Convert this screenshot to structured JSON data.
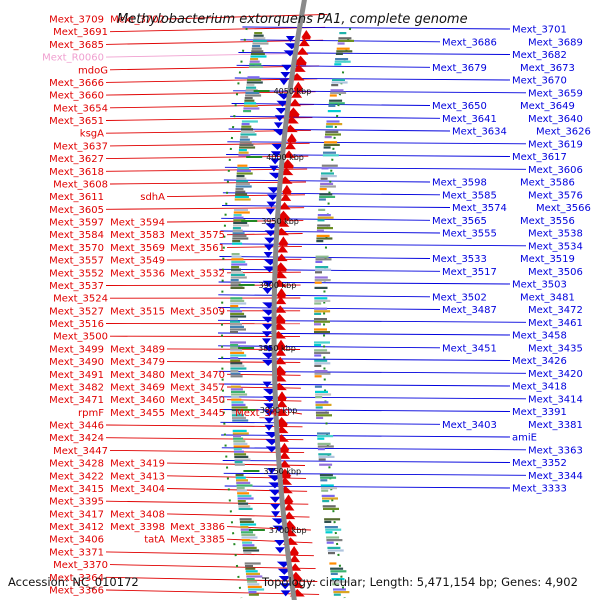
{
  "title": "Methylobacterium extorquens PA1, complete genome",
  "footer": {
    "accession": "Accession: NC_010172",
    "summary": "Topology: circular; Length: 5,471,154 bp; Genes: 4,902"
  },
  "colors": {
    "forward": "#e00000",
    "reverse": "#0000dd",
    "rna": "#f0a0d0",
    "axis": "#888888",
    "tick": "#228822"
  },
  "ticks": [
    "4050 kbp",
    "4000 kbp",
    "3950 kbp",
    "3900 kbp",
    "3850 kbp",
    "3800 kbp",
    "3750 kbp",
    "3700 kbp"
  ],
  "left_labels": [
    [
      "Mext_3709",
      "Mext_3702"
    ],
    [
      "Mext_3691"
    ],
    [
      "Mext_3685"
    ],
    [
      "Mext_R0060"
    ],
    [
      "mdoG"
    ],
    [
      "Mext_3666"
    ],
    [
      "Mext_3660"
    ],
    [
      "Mext_3654"
    ],
    [
      "Mext_3651"
    ],
    [
      "ksgA"
    ],
    [
      "Mext_3637"
    ],
    [
      "Mext_3627"
    ],
    [
      "Mext_3618"
    ],
    [
      "Mext_3608"
    ],
    [
      "Mext_3611",
      "sdhA"
    ],
    [
      "Mext_3605"
    ],
    [
      "Mext_3597",
      "Mext_3594"
    ],
    [
      "Mext_3584",
      "Mext_3583",
      "Mext_3575"
    ],
    [
      "Mext_3570",
      "Mext_3569",
      "Mext_3561"
    ],
    [
      "Mext_3557",
      "Mext_3549"
    ],
    [
      "Mext_3552",
      "Mext_3536",
      "Mext_3532"
    ],
    [
      "Mext_3537"
    ],
    [
      "Mext_3524"
    ],
    [
      "Mext_3527",
      "Mext_3515",
      "Mext_3509"
    ],
    [
      "Mext_3516"
    ],
    [
      "Mext_3500"
    ],
    [
      "Mext_3499",
      "Mext_3489"
    ],
    [
      "Mext_3490",
      "Mext_3479"
    ],
    [
      "Mext_3491",
      "Mext_3480",
      "Mext_3470"
    ],
    [
      "Mext_3482",
      "Mext_3469",
      "Mext_3457"
    ],
    [
      "Mext_3471",
      "Mext_3460",
      "Mext_3450"
    ],
    [
      "rpmF",
      "Mext_3455",
      "Mext_3445",
      "Mext_3430"
    ],
    [
      "Mext_3446"
    ],
    [
      "Mext_3424"
    ],
    [
      "Mext_3447"
    ],
    [
      "Mext_3428",
      "Mext_3419"
    ],
    [
      "Mext_3422",
      "Mext_3413"
    ],
    [
      "Mext_3415",
      "Mext_3404"
    ],
    [
      "Mext_3395"
    ],
    [
      "Mext_3417",
      "Mext_3408"
    ],
    [
      "Mext_3412",
      "Mext_3398",
      "Mext_3386"
    ],
    [
      "Mext_3406",
      "tatA",
      "Mext_3385"
    ],
    [
      "Mext_3371"
    ],
    [
      "Mext_3370"
    ],
    [
      "Mext_3364"
    ],
    [
      "Mext_3366"
    ]
  ],
  "right_labels": [
    [
      "Mext_3701"
    ],
    [
      "Mext_3686",
      "Mext_3689"
    ],
    [
      "Mext_3682"
    ],
    [
      "Mext_3679",
      "Mext_3673"
    ],
    [
      "Mext_3670"
    ],
    [
      "Mext_3659"
    ],
    [
      "Mext_3650",
      "Mext_3649"
    ],
    [
      "Mext_3641",
      "Mext_3640"
    ],
    [
      "Mext_3634",
      "Mext_3626"
    ],
    [
      "Mext_3619"
    ],
    [
      "Mext_3617"
    ],
    [
      "Mext_3606"
    ],
    [
      "Mext_3598",
      "Mext_3586"
    ],
    [
      "Mext_3585",
      "Mext_3576"
    ],
    [
      "Mext_3574",
      "Mext_3566"
    ],
    [
      "Mext_3565",
      "Mext_3556"
    ],
    [
      "Mext_3555",
      "Mext_3538"
    ],
    [
      "Mext_3534"
    ],
    [
      "Mext_3533",
      "Mext_3519"
    ],
    [
      "Mext_3517",
      "Mext_3506"
    ],
    [
      "Mext_3503"
    ],
    [
      "Mext_3502",
      "Mext_3481"
    ],
    [
      "Mext_3487",
      "Mext_3472"
    ],
    [
      "Mext_3461"
    ],
    [
      "Mext_3458"
    ],
    [
      "Mext_3451",
      "Mext_3435"
    ],
    [
      "Mext_3426"
    ],
    [
      "Mext_3420"
    ],
    [
      "Mext_3418"
    ],
    [
      "Mext_3414"
    ],
    [
      "Mext_3391"
    ],
    [
      "Mext_3403",
      "Mext_3381"
    ],
    [
      "amiE"
    ],
    [
      "Mext_3363"
    ],
    [
      "Mext_3352"
    ],
    [
      "Mext_3344"
    ],
    [
      "Mext_3333"
    ]
  ]
}
